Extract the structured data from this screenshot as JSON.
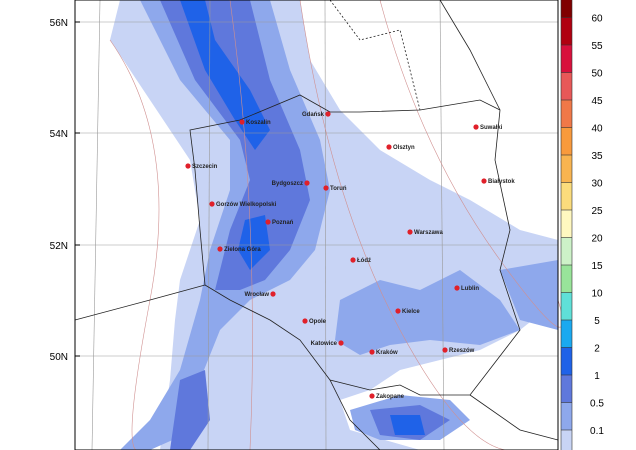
{
  "map": {
    "lat_labels": [
      "56N",
      "54N",
      "52N",
      "50N"
    ],
    "cities": [
      "Koszalin",
      "Gdańsk",
      "Szczecin",
      "Olsztyn",
      "Suwałki",
      "Bydgoszcz",
      "Toruń",
      "Białystok",
      "Gorzów Wielkopolski",
      "Poznań",
      "Warszawa",
      "Zielona Góra",
      "Łódź",
      "Lublin",
      "Wrocław",
      "Opole",
      "Kielce",
      "Katowice",
      "Kraków",
      "Rzeszów",
      "Zakopane"
    ],
    "city_marker_color": "#e0202a",
    "isobar_color": "#c06060"
  },
  "colorbar": {
    "labels": [
      "0.1",
      "0.5",
      "1",
      "2",
      "5",
      "10",
      "15",
      "20",
      "25",
      "30",
      "35",
      "40",
      "45",
      "50",
      "55",
      "60"
    ],
    "colors": [
      "#c8d4f5",
      "#8ea8ec",
      "#5f78dc",
      "#1f62e8",
      "#1aa9f0",
      "#5fe0d8",
      "#98e49a",
      "#cdf2c8",
      "#fff8c0",
      "#fbdc7c",
      "#f8b450",
      "#f89a3c",
      "#f07848",
      "#e85858",
      "#d8103c",
      "#b00010",
      "#800000"
    ]
  }
}
